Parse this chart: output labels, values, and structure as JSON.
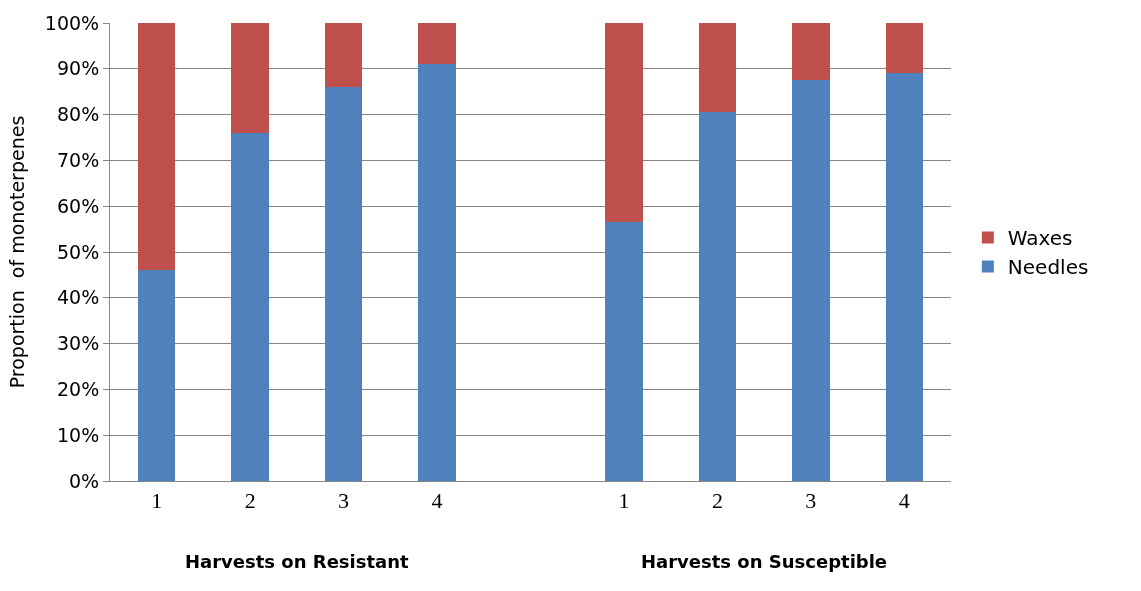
{
  "chart_data": {
    "type": "bar",
    "stacked": true,
    "ylabel": "Proportion  of monoterpenes",
    "categories": [
      "1",
      "2",
      "3",
      "4",
      null,
      "1",
      "2",
      "3",
      "4"
    ],
    "series": [
      {
        "name": "Needles",
        "color": "#4f81bd",
        "values": [
          46,
          76,
          86,
          91,
          null,
          56.5,
          80.5,
          87.5,
          89
        ]
      },
      {
        "name": "Waxes",
        "color": "#c0504d",
        "values": [
          54,
          24,
          14,
          9,
          null,
          43.5,
          19.5,
          12.5,
          11
        ]
      }
    ],
    "ylim": [
      0,
      100
    ],
    "yticks": [
      {
        "value": 0,
        "label": "0%"
      },
      {
        "value": 10,
        "label": "10%"
      },
      {
        "value": 20,
        "label": "20%"
      },
      {
        "value": 30,
        "label": "30%"
      },
      {
        "value": 40,
        "label": "40%"
      },
      {
        "value": 50,
        "label": "50%"
      },
      {
        "value": 60,
        "label": "60%"
      },
      {
        "value": 70,
        "label": "70%"
      },
      {
        "value": 80,
        "label": "80%"
      },
      {
        "value": 90,
        "label": "90%"
      },
      {
        "value": 100,
        "label": "100%"
      }
    ],
    "grid": "y",
    "legend": "right",
    "annotations": [
      "Harvests on Resistant",
      "Harvests on Susceptible"
    ]
  }
}
